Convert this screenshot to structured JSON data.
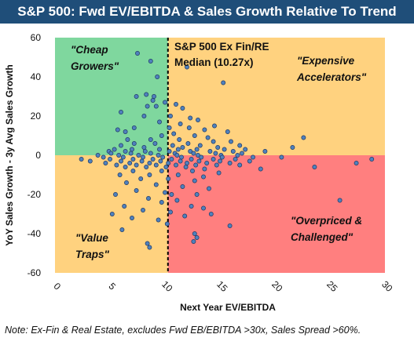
{
  "title": "S&P 500: Fwd EV/EBITDA & Sales Growth Relative To Trend",
  "note": "Note: Ex-Fin & Real Estate, excludes Fwd EB/EBITDA >30x, Sales Spread >60%.",
  "chart_data": {
    "type": "scatter",
    "xlabel": "Next Year EV/EBITDA",
    "ylabel": "YoY Sales Growth - 3y Avg Sales Growth",
    "xlim": [
      0,
      30
    ],
    "ylim": [
      -60,
      60
    ],
    "x_ticks": [
      0,
      5,
      10,
      15,
      20,
      25,
      30
    ],
    "y_ticks": [
      60,
      40,
      20,
      0,
      -20,
      -40,
      -60
    ],
    "median_x": 10.27,
    "median_label_lines": [
      "S&P 500 Ex Fin/RE",
      "Median (10.27x)"
    ],
    "quadrants": [
      {
        "name": "cheap-growers",
        "lines": [
          "\"Cheap",
          "Growers\""
        ],
        "color": "#7fd79e"
      },
      {
        "name": "expensive-accelerators",
        "lines": [
          "\"Expensive",
          "Accelerators\""
        ],
        "color": "#ffd27f"
      },
      {
        "name": "value-traps",
        "lines": [
          "\"Value",
          "Traps\""
        ],
        "color": "#ffd27f"
      },
      {
        "name": "overpriced-challenged",
        "lines": [
          "\"Overpriced &",
          "Challenged\""
        ],
        "color": "#ff7f7f"
      }
    ],
    "colors": {
      "point_fill": "#4f81bd",
      "point_stroke": "#1f3864"
    },
    "points": [
      [
        7.5,
        52
      ],
      [
        8.7,
        48
      ],
      [
        12.0,
        45
      ],
      [
        9.3,
        40
      ],
      [
        15.3,
        37
      ],
      [
        7.4,
        30
      ],
      [
        8.3,
        31
      ],
      [
        9.0,
        30
      ],
      [
        8.9,
        28
      ],
      [
        10.0,
        27
      ],
      [
        11.0,
        26
      ],
      [
        8.4,
        25
      ],
      [
        9.2,
        25
      ],
      [
        11.6,
        24
      ],
      [
        6.0,
        22
      ],
      [
        8.1,
        20
      ],
      [
        10.5,
        20
      ],
      [
        12.3,
        19
      ],
      [
        13.0,
        18
      ],
      [
        9.5,
        17
      ],
      [
        11.4,
        16
      ],
      [
        14.5,
        15
      ],
      [
        7.2,
        14
      ],
      [
        10.4,
        14
      ],
      [
        12.2,
        14
      ],
      [
        13.6,
        13
      ],
      [
        5.7,
        13
      ],
      [
        6.4,
        12
      ],
      [
        15.7,
        12
      ],
      [
        10.8,
        11
      ],
      [
        9.7,
        10
      ],
      [
        12.7,
        10
      ],
      [
        13.9,
        9
      ],
      [
        22.6,
        9
      ],
      [
        6.6,
        8
      ],
      [
        8.7,
        8
      ],
      [
        11.3,
        8
      ],
      [
        14.4,
        7
      ],
      [
        16.0,
        7
      ],
      [
        12.1,
        6
      ],
      [
        7.2,
        6
      ],
      [
        9.1,
        6
      ],
      [
        10.7,
        5
      ],
      [
        13.2,
        5
      ],
      [
        16.8,
        5
      ],
      [
        6.0,
        5
      ],
      [
        8.1,
        4
      ],
      [
        11.6,
        4
      ],
      [
        14.8,
        4
      ],
      [
        21.6,
        4
      ],
      [
        5.4,
        3
      ],
      [
        7.0,
        3
      ],
      [
        9.5,
        3
      ],
      [
        11.2,
        3
      ],
      [
        12.9,
        3
      ],
      [
        15.4,
        3
      ],
      [
        17.3,
        3
      ],
      [
        4.9,
        2
      ],
      [
        6.4,
        2
      ],
      [
        8.2,
        2
      ],
      [
        10.4,
        2
      ],
      [
        12.3,
        2
      ],
      [
        14.1,
        2
      ],
      [
        16.2,
        2
      ],
      [
        19.1,
        2
      ],
      [
        5.1,
        1
      ],
      [
        6.9,
        1
      ],
      [
        8.7,
        1
      ],
      [
        10.9,
        1
      ],
      [
        12.6,
        1
      ],
      [
        14.6,
        1
      ],
      [
        17.0,
        1
      ],
      [
        3.9,
        0
      ],
      [
        5.8,
        0
      ],
      [
        7.6,
        0
      ],
      [
        9.4,
        0
      ],
      [
        11.1,
        0
      ],
      [
        13.0,
        0
      ],
      [
        15.1,
        0
      ],
      [
        16.6,
        0
      ],
      [
        4.4,
        -1
      ],
      [
        6.2,
        -1
      ],
      [
        8.0,
        -1
      ],
      [
        9.8,
        -1
      ],
      [
        11.5,
        -1
      ],
      [
        13.3,
        -1
      ],
      [
        15.2,
        -1
      ],
      [
        18.0,
        -1
      ],
      [
        20.6,
        -1
      ],
      [
        28.8,
        -2
      ],
      [
        2.4,
        -2
      ],
      [
        5.0,
        -2
      ],
      [
        7.1,
        -2
      ],
      [
        8.9,
        -2
      ],
      [
        10.6,
        -2
      ],
      [
        12.4,
        -2
      ],
      [
        14.4,
        -2
      ],
      [
        16.4,
        -2
      ],
      [
        27.4,
        -4
      ],
      [
        3.2,
        -3
      ],
      [
        6.0,
        -3
      ],
      [
        7.9,
        -3
      ],
      [
        9.6,
        -3
      ],
      [
        11.4,
        -3
      ],
      [
        13.1,
        -3
      ],
      [
        15.0,
        -3
      ],
      [
        17.7,
        -3
      ],
      [
        4.6,
        -4
      ],
      [
        6.8,
        -4
      ],
      [
        8.6,
        -4
      ],
      [
        10.3,
        -4
      ],
      [
        12.0,
        -4
      ],
      [
        13.8,
        -4
      ],
      [
        15.9,
        -4
      ],
      [
        23.6,
        -6
      ],
      [
        5.6,
        -5
      ],
      [
        7.4,
        -5
      ],
      [
        9.2,
        -5
      ],
      [
        11.0,
        -5
      ],
      [
        12.8,
        -5
      ],
      [
        14.7,
        -5
      ],
      [
        16.8,
        -5
      ],
      [
        6.4,
        -6
      ],
      [
        8.3,
        -6
      ],
      [
        10.1,
        -6
      ],
      [
        11.9,
        -6
      ],
      [
        13.6,
        -7
      ],
      [
        18.7,
        -7
      ],
      [
        7.1,
        -8
      ],
      [
        9.7,
        -8
      ],
      [
        12.5,
        -8
      ],
      [
        14.9,
        -9
      ],
      [
        5.9,
        -10
      ],
      [
        8.6,
        -10
      ],
      [
        11.2,
        -10
      ],
      [
        13.5,
        -11
      ],
      [
        7.8,
        -12
      ],
      [
        10.3,
        -12
      ],
      [
        12.7,
        -13
      ],
      [
        6.5,
        -14
      ],
      [
        9.2,
        -15
      ],
      [
        11.6,
        -16
      ],
      [
        14.0,
        -17
      ],
      [
        7.4,
        -18
      ],
      [
        10.0,
        -19
      ],
      [
        12.9,
        -20
      ],
      [
        5.5,
        -20
      ],
      [
        8.5,
        -22
      ],
      [
        11.1,
        -23
      ],
      [
        9.7,
        -24
      ],
      [
        25.9,
        -23
      ],
      [
        6.3,
        -26
      ],
      [
        12.4,
        -26
      ],
      [
        13.5,
        -27
      ],
      [
        8.0,
        -28
      ],
      [
        10.5,
        -29
      ],
      [
        14.2,
        -30
      ],
      [
        5.2,
        -30
      ],
      [
        11.8,
        -31
      ],
      [
        7.0,
        -32
      ],
      [
        9.4,
        -33
      ],
      [
        15.9,
        -36
      ],
      [
        6.1,
        -38
      ],
      [
        12.7,
        -40
      ],
      [
        10.2,
        -35
      ],
      [
        10.6,
        -20
      ],
      [
        12.9,
        -42
      ],
      [
        12.6,
        -44
      ],
      [
        8.4,
        -45
      ],
      [
        8.6,
        -47
      ]
    ]
  }
}
